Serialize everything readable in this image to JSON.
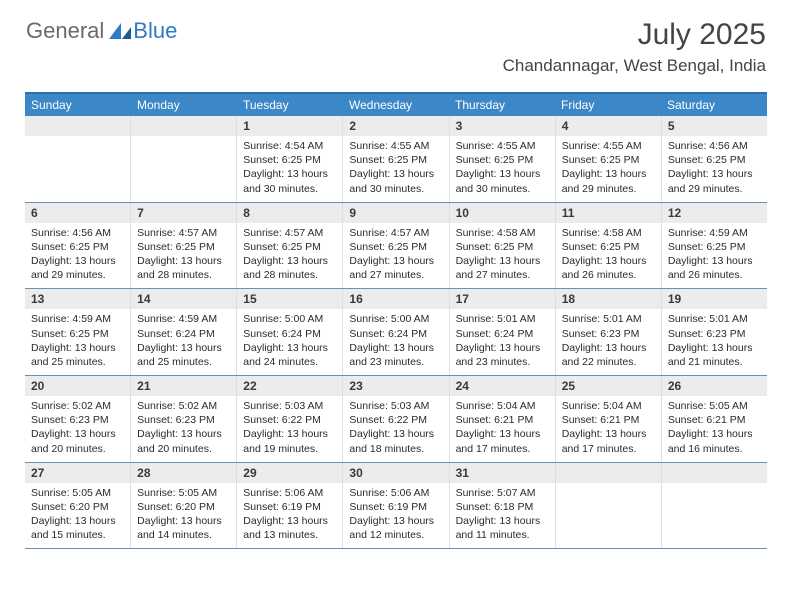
{
  "logo": {
    "text1": "General",
    "text2": "Blue"
  },
  "title": "July 2025",
  "location": "Chandannagar, West Bengal, India",
  "weekdays": [
    "Sunday",
    "Monday",
    "Tuesday",
    "Wednesday",
    "Thursday",
    "Friday",
    "Saturday"
  ],
  "colors": {
    "header_bar": "#3b87c8",
    "top_border": "#2b6fb0",
    "week_divider": "#6b91b3",
    "daynum_bg": "#ececec",
    "text": "#2b2b2b"
  },
  "grid": [
    [
      null,
      null,
      {
        "n": "1",
        "sr": "4:54 AM",
        "ss": "6:25 PM",
        "dl": "13 hours and 30 minutes."
      },
      {
        "n": "2",
        "sr": "4:55 AM",
        "ss": "6:25 PM",
        "dl": "13 hours and 30 minutes."
      },
      {
        "n": "3",
        "sr": "4:55 AM",
        "ss": "6:25 PM",
        "dl": "13 hours and 30 minutes."
      },
      {
        "n": "4",
        "sr": "4:55 AM",
        "ss": "6:25 PM",
        "dl": "13 hours and 29 minutes."
      },
      {
        "n": "5",
        "sr": "4:56 AM",
        "ss": "6:25 PM",
        "dl": "13 hours and 29 minutes."
      }
    ],
    [
      {
        "n": "6",
        "sr": "4:56 AM",
        "ss": "6:25 PM",
        "dl": "13 hours and 29 minutes."
      },
      {
        "n": "7",
        "sr": "4:57 AM",
        "ss": "6:25 PM",
        "dl": "13 hours and 28 minutes."
      },
      {
        "n": "8",
        "sr": "4:57 AM",
        "ss": "6:25 PM",
        "dl": "13 hours and 28 minutes."
      },
      {
        "n": "9",
        "sr": "4:57 AM",
        "ss": "6:25 PM",
        "dl": "13 hours and 27 minutes."
      },
      {
        "n": "10",
        "sr": "4:58 AM",
        "ss": "6:25 PM",
        "dl": "13 hours and 27 minutes."
      },
      {
        "n": "11",
        "sr": "4:58 AM",
        "ss": "6:25 PM",
        "dl": "13 hours and 26 minutes."
      },
      {
        "n": "12",
        "sr": "4:59 AM",
        "ss": "6:25 PM",
        "dl": "13 hours and 26 minutes."
      }
    ],
    [
      {
        "n": "13",
        "sr": "4:59 AM",
        "ss": "6:25 PM",
        "dl": "13 hours and 25 minutes."
      },
      {
        "n": "14",
        "sr": "4:59 AM",
        "ss": "6:24 PM",
        "dl": "13 hours and 25 minutes."
      },
      {
        "n": "15",
        "sr": "5:00 AM",
        "ss": "6:24 PM",
        "dl": "13 hours and 24 minutes."
      },
      {
        "n": "16",
        "sr": "5:00 AM",
        "ss": "6:24 PM",
        "dl": "13 hours and 23 minutes."
      },
      {
        "n": "17",
        "sr": "5:01 AM",
        "ss": "6:24 PM",
        "dl": "13 hours and 23 minutes."
      },
      {
        "n": "18",
        "sr": "5:01 AM",
        "ss": "6:23 PM",
        "dl": "13 hours and 22 minutes."
      },
      {
        "n": "19",
        "sr": "5:01 AM",
        "ss": "6:23 PM",
        "dl": "13 hours and 21 minutes."
      }
    ],
    [
      {
        "n": "20",
        "sr": "5:02 AM",
        "ss": "6:23 PM",
        "dl": "13 hours and 20 minutes."
      },
      {
        "n": "21",
        "sr": "5:02 AM",
        "ss": "6:23 PM",
        "dl": "13 hours and 20 minutes."
      },
      {
        "n": "22",
        "sr": "5:03 AM",
        "ss": "6:22 PM",
        "dl": "13 hours and 19 minutes."
      },
      {
        "n": "23",
        "sr": "5:03 AM",
        "ss": "6:22 PM",
        "dl": "13 hours and 18 minutes."
      },
      {
        "n": "24",
        "sr": "5:04 AM",
        "ss": "6:21 PM",
        "dl": "13 hours and 17 minutes."
      },
      {
        "n": "25",
        "sr": "5:04 AM",
        "ss": "6:21 PM",
        "dl": "13 hours and 17 minutes."
      },
      {
        "n": "26",
        "sr": "5:05 AM",
        "ss": "6:21 PM",
        "dl": "13 hours and 16 minutes."
      }
    ],
    [
      {
        "n": "27",
        "sr": "5:05 AM",
        "ss": "6:20 PM",
        "dl": "13 hours and 15 minutes."
      },
      {
        "n": "28",
        "sr": "5:05 AM",
        "ss": "6:20 PM",
        "dl": "13 hours and 14 minutes."
      },
      {
        "n": "29",
        "sr": "5:06 AM",
        "ss": "6:19 PM",
        "dl": "13 hours and 13 minutes."
      },
      {
        "n": "30",
        "sr": "5:06 AM",
        "ss": "6:19 PM",
        "dl": "13 hours and 12 minutes."
      },
      {
        "n": "31",
        "sr": "5:07 AM",
        "ss": "6:18 PM",
        "dl": "13 hours and 11 minutes."
      },
      null,
      null
    ]
  ],
  "labels": {
    "sunrise": "Sunrise:",
    "sunset": "Sunset:",
    "daylight": "Daylight:"
  }
}
